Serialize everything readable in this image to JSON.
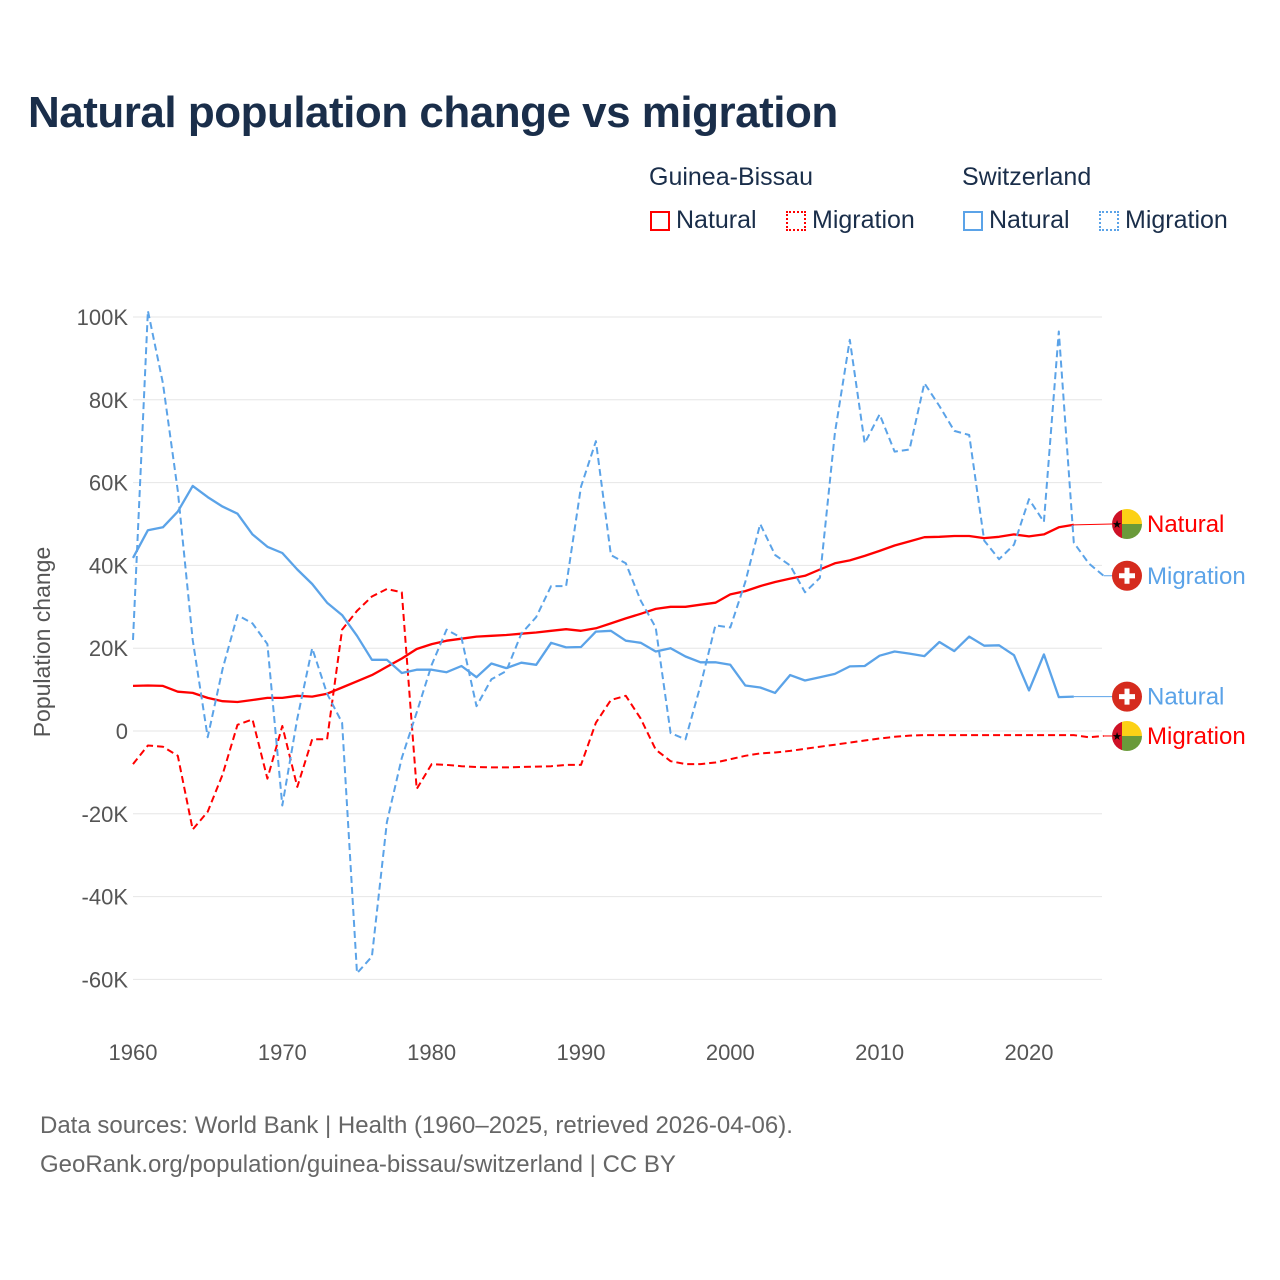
{
  "title": "Natural population change vs migration",
  "legend": {
    "groups": [
      {
        "name": "Guinea-Bissau",
        "color": "#ff0000",
        "items": [
          {
            "label": "Natural",
            "style": "solid"
          },
          {
            "label": "Migration",
            "style": "dotted"
          }
        ]
      },
      {
        "name": "Switzerland",
        "color": "#5ba3e8",
        "items": [
          {
            "label": "Natural",
            "style": "solid"
          },
          {
            "label": "Migration",
            "style": "dotted"
          }
        ]
      }
    ]
  },
  "footer": {
    "line1": "Data sources: World Bank | Health (1960–2025, retrieved 2026-04-06).",
    "line2": "GeoRank.org/population/guinea-bissau/switzerland | CC BY"
  },
  "chart_data": {
    "type": "line",
    "title": "Natural population change vs migration",
    "xlabel": "",
    "ylabel": "Population change",
    "xlim": [
      1960,
      2025
    ],
    "ylim": [
      -70000,
      100000
    ],
    "x_ticks": [
      1960,
      1970,
      1980,
      1990,
      2000,
      2010,
      2020
    ],
    "y_ticks": [
      {
        "v": 100000,
        "label": "100K"
      },
      {
        "v": 80000,
        "label": "80K"
      },
      {
        "v": 60000,
        "label": "60K"
      },
      {
        "v": 40000,
        "label": "40K"
      },
      {
        "v": 20000,
        "label": "20K"
      },
      {
        "v": 0,
        "label": "0"
      },
      {
        "v": -20000,
        "label": "-20K"
      },
      {
        "v": -40000,
        "label": "-40K"
      },
      {
        "v": -60000,
        "label": "-60K"
      }
    ],
    "grid": true,
    "start_year": 1960,
    "series": [
      {
        "name": "Guinea-Bissau Natural",
        "end_label": "Natural",
        "country": "guinea-bissau",
        "color": "#ff0000",
        "dash": false,
        "label_value": 50000,
        "values_k": [
          10.9,
          11,
          10.9,
          9.5,
          9.2,
          8,
          7.2,
          7,
          7.5,
          8,
          8,
          8.5,
          8.3,
          9,
          10.5,
          12,
          13.5,
          15.5,
          17.5,
          19.8,
          21,
          21.8,
          22.3,
          22.8,
          23,
          23.2,
          23.5,
          23.8,
          24.2,
          24.6,
          24.2,
          24.8,
          26,
          27.2,
          28.3,
          29.5,
          30,
          30,
          30.5,
          31,
          33,
          33.8,
          35,
          36,
          36.8,
          37.5,
          39,
          40.5,
          41.2,
          42.3,
          43.5,
          44.8,
          45.8,
          46.8,
          46.9,
          47.1,
          47.1,
          46.6,
          46.9,
          47.5,
          47,
          47.5,
          49.2,
          49.8
        ]
      },
      {
        "name": "Guinea-Bissau Migration",
        "end_label": "Migration",
        "country": "guinea-bissau",
        "color": "#ff0000",
        "dash": true,
        "label_value": -1200,
        "values_k": [
          -8,
          -3.5,
          -3.8,
          -6,
          -23.8,
          -19.5,
          -10.5,
          1.5,
          2.8,
          -11.5,
          1.2,
          -13.5,
          -2,
          -2,
          24.5,
          29,
          32.5,
          34.3,
          33.5,
          -14,
          -8,
          -8.2,
          -8.5,
          -8.7,
          -8.8,
          -8.8,
          -8.7,
          -8.6,
          -8.5,
          -8.2,
          -8.2,
          2,
          7.5,
          8.5,
          3,
          -4.5,
          -7.3,
          -8,
          -8,
          -7.6,
          -6.8,
          -6,
          -5.4,
          -5.2,
          -4.8,
          -4.3,
          -3.8,
          -3.3,
          -2.8,
          -2.3,
          -1.8,
          -1.4,
          -1.1,
          -1,
          -1,
          -1,
          -1,
          -1,
          -1,
          -1,
          -1,
          -1,
          -1,
          -1,
          -1.5,
          -1.2
        ]
      },
      {
        "name": "Switzerland Natural",
        "end_label": "Natural",
        "country": "switzerland",
        "color": "#5ba3e8",
        "dash": false,
        "label_value": 8300,
        "values_k": [
          41.8,
          48.5,
          49.2,
          53,
          59.2,
          56.5,
          54.2,
          52.5,
          47.5,
          44.5,
          43,
          39,
          35.5,
          31,
          28,
          23,
          17.2,
          17.2,
          14,
          14.8,
          14.8,
          14.2,
          15.7,
          13,
          16.3,
          15.2,
          16.5,
          16,
          21.3,
          20.2,
          20.3,
          24,
          24.2,
          21.8,
          21.3,
          19.2,
          20,
          18,
          16.6,
          16.6,
          16,
          11,
          10.5,
          9.2,
          13.5,
          12.2,
          13,
          13.8,
          15.6,
          15.7,
          18.2,
          19.2,
          18.7,
          18.1,
          21.5,
          19.3,
          22.8,
          20.6,
          20.7,
          18.3,
          9.8,
          18.5,
          8.2,
          8.3
        ]
      },
      {
        "name": "Switzerland Migration",
        "end_label": "Migration",
        "country": "switzerland",
        "color": "#5ba3e8",
        "dash": true,
        "label_value": 37500,
        "values_k": [
          22,
          101.5,
          84,
          58,
          22,
          -1.5,
          15,
          28,
          26,
          21,
          -18,
          3,
          20,
          9,
          2,
          -58.5,
          -54.5,
          -22,
          -6.5,
          4.5,
          16,
          24.5,
          22.5,
          6,
          12.5,
          14.5,
          23.5,
          27.5,
          35,
          35,
          59,
          70,
          42.5,
          40.5,
          31.5,
          25,
          -0.5,
          -2,
          11,
          25.5,
          25,
          36,
          50,
          42.5,
          40,
          33.5,
          37,
          72,
          94.5,
          69.5,
          76.5,
          67.5,
          68,
          84,
          78.5,
          72.5,
          71.5,
          46,
          41.5,
          45,
          56,
          50.5,
          96.5,
          45.5,
          40.5,
          37.5
        ]
      }
    ]
  }
}
